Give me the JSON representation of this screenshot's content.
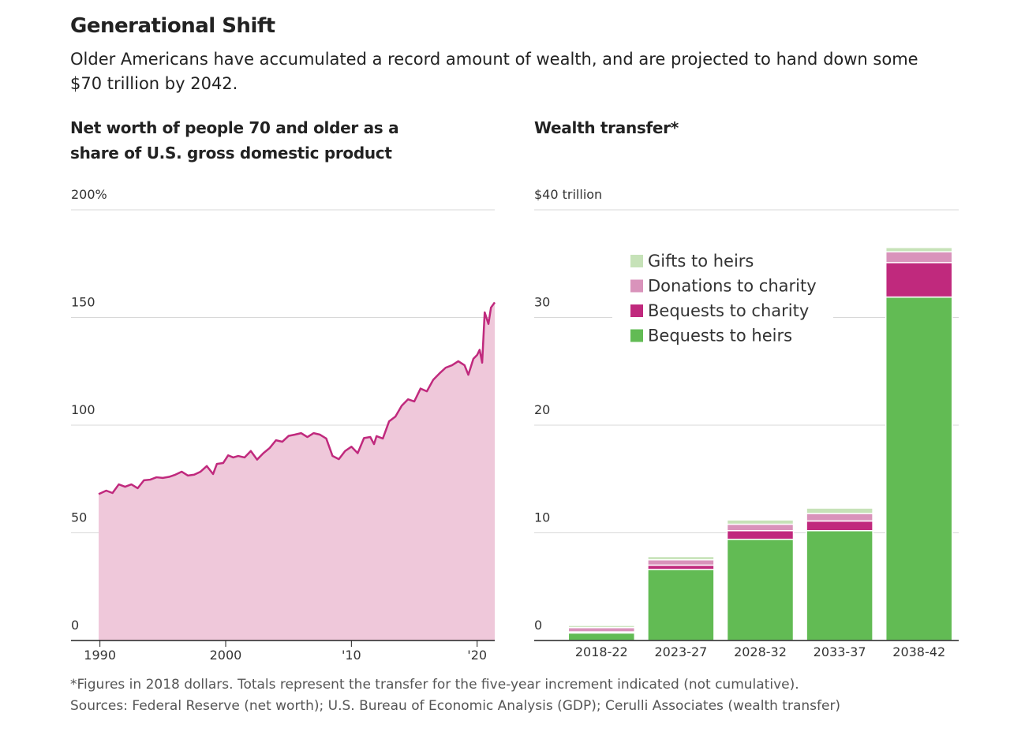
{
  "title": "Generational Shift",
  "subtitle": "Older Americans have accumulated a record amount of wealth, and are projected to hand down some $70 trillion by 2042.",
  "footnote": "*Figures in 2018 dollars. Totals represent the transfer for the five-year increment indicated (not cumulative).",
  "source": "Sources: Federal Reserve (net worth); U.S. Bureau of Economic Analysis (GDP); Cerulli Associates (wealth transfer)",
  "chart_data": [
    {
      "type": "area",
      "title": "Net worth of people 70 and older as a share of U.S. gross domestic product",
      "x": [
        1989.9,
        1990.5,
        1991,
        1991.5,
        1992,
        1992.5,
        1993,
        1993.5,
        1994,
        1994.5,
        1995,
        1995.5,
        1996,
        1996.5,
        1997,
        1997.5,
        1998,
        1998.5,
        1999,
        1999.3,
        1999.8,
        2000.2,
        2000.6,
        2001,
        2001.5,
        2002,
        2002.5,
        2003,
        2003.5,
        2004,
        2004.5,
        2005,
        2005.5,
        2006,
        2006.5,
        2007,
        2007.5,
        2008,
        2008.5,
        2009,
        2009.5,
        2010,
        2010.5,
        2011,
        2011.5,
        2011.8,
        2012,
        2012.5,
        2013,
        2013.5,
        2014,
        2014.5,
        2015,
        2015.5,
        2016,
        2016.5,
        2017,
        2017.5,
        2018,
        2018.5,
        2019,
        2019.3,
        2019.7,
        2020,
        2020.2,
        2020.4,
        2020.6,
        2020.9,
        2021.1,
        2021.4
      ],
      "values": [
        68,
        69.6,
        68.5,
        72.5,
        71.4,
        72.5,
        70.7,
        74.4,
        74.7,
        75.8,
        75.5,
        76,
        77,
        78.4,
        76.6,
        77,
        78.4,
        81,
        77.3,
        82,
        82.4,
        86,
        85,
        85.7,
        85,
        88,
        84,
        87,
        89.4,
        93,
        92.3,
        95,
        95.6,
        96.3,
        94.5,
        96.3,
        95.6,
        93.8,
        85.7,
        84.2,
        88,
        90,
        87,
        94,
        94.5,
        91.2,
        94.9,
        93.8,
        101.8,
        104,
        109,
        112,
        111,
        117,
        115.7,
        121,
        124,
        126.7,
        127.8,
        129.7,
        127.8,
        123.4,
        130.8,
        132.6,
        135,
        129,
        152.4,
        147,
        154.6,
        157
      ],
      "color": "#c0297d",
      "fill": "#efc8da",
      "xlim": [
        1987.7,
        2021.4
      ],
      "xticks": [
        1990,
        2000,
        {
          "value": 2010,
          "label": "'10"
        },
        {
          "value": 2020,
          "label": "'20"
        }
      ],
      "ylim": [
        0,
        200
      ],
      "yticks": [
        0,
        50,
        100,
        150,
        {
          "value": 200,
          "label": "200%"
        }
      ],
      "grid": true
    },
    {
      "type": "stacked-bar",
      "title": "Wealth transfer*",
      "categories": [
        "2018-22",
        "2023-27",
        "2028-32",
        "2033-37",
        "2038-42"
      ],
      "series": [
        {
          "name": "Bequests to heirs",
          "color": "#62bb54",
          "values": [
            0.7,
            6.6,
            9.4,
            10.2,
            31.9
          ]
        },
        {
          "name": "Bequests to charity",
          "color": "#c0297d",
          "values": [
            0.1,
            0.4,
            0.8,
            0.9,
            3.2
          ]
        },
        {
          "name": "Donations to charity",
          "color": "#d993bb",
          "values": [
            0.4,
            0.5,
            0.6,
            0.7,
            1.0
          ]
        },
        {
          "name": "Gifts to heirs",
          "color": "#c6e2b8",
          "values": [
            0.2,
            0.3,
            0.4,
            0.5,
            0.4
          ]
        }
      ],
      "ylim": [
        0,
        40
      ],
      "yticks": [
        0,
        10,
        20,
        30,
        {
          "value": 40,
          "label": "$40 trillion"
        }
      ],
      "grid": true,
      "legend": "upper left"
    }
  ]
}
